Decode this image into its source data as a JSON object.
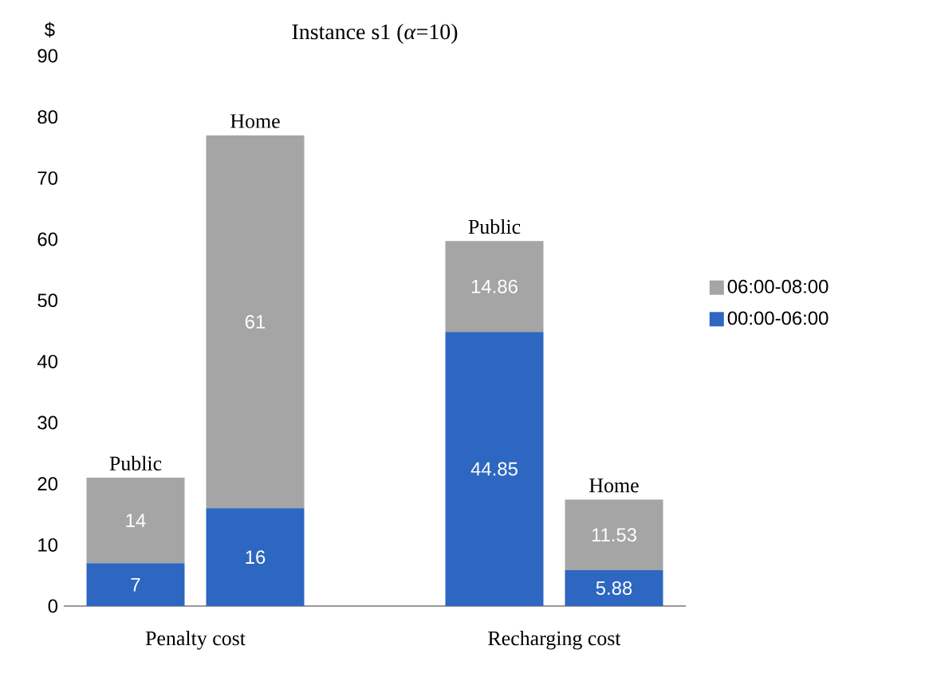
{
  "chart_data": {
    "type": "bar",
    "stacked": true,
    "title": "Instance s1 (*α*=10)",
    "ylabel": "$",
    "categories": [
      "Public",
      "Home",
      null,
      "Public",
      "Home"
    ],
    "series": [
      {
        "name": "00:00-06:00",
        "color": "#2e67c1",
        "values": [
          7,
          16,
          null,
          44.85,
          5.88
        ]
      },
      {
        "name": "06:00-08:00",
        "color": "#a5a5a5",
        "values": [
          14,
          61,
          null,
          14.86,
          11.53
        ]
      }
    ],
    "annotations": [
      "Penalty cost",
      "Recharging cost"
    ],
    "ylim": [
      0,
      90
    ],
    "yticks": [
      0,
      10,
      20,
      30,
      40,
      50,
      60,
      70,
      80,
      90
    ],
    "data_labels": true,
    "legend": "right",
    "grid": false
  }
}
